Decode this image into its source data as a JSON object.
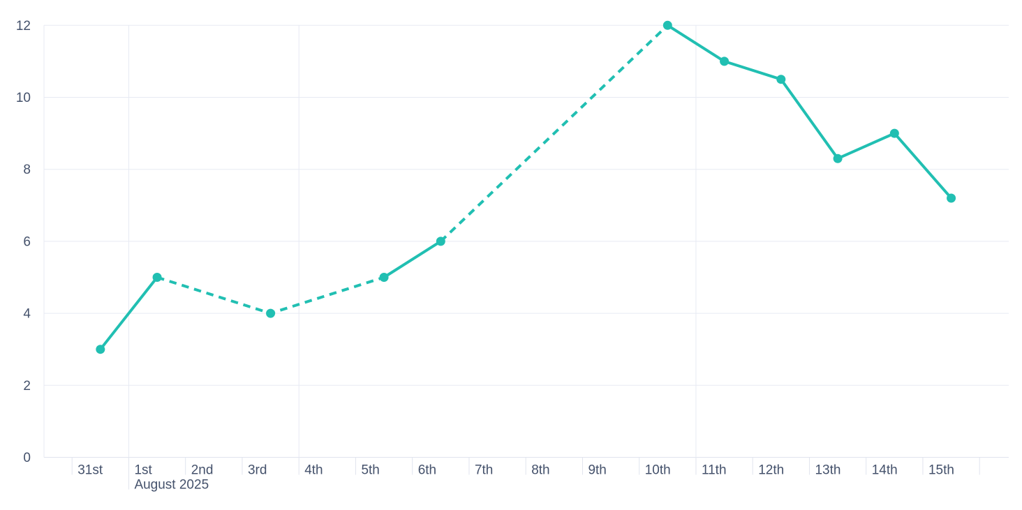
{
  "chart_data": {
    "type": "line",
    "title": "",
    "legend": "none",
    "x_axis": {
      "tick_labels": [
        "31st",
        "1st",
        "2nd",
        "3rd",
        "4th",
        "5th",
        "6th",
        "7th",
        "8th",
        "9th",
        "10th",
        "11th",
        "12th",
        "13th",
        "14th",
        "15th",
        ""
      ],
      "month_label": "August 2025",
      "month_tick_index": 1
    },
    "y_axis": {
      "tick_values": [
        0,
        2,
        4,
        6,
        8,
        10,
        12
      ],
      "range": [
        0,
        12
      ]
    },
    "grid": {
      "horizontal": true,
      "left_border": true,
      "vertical_gridline_tick_indices": [
        1,
        4,
        11
      ]
    },
    "series": [
      {
        "name": "value",
        "color": "#21bfb2",
        "marker": "circle",
        "points": [
          {
            "label": "31st",
            "tick_index": 0,
            "value": 3
          },
          {
            "label": "1st",
            "tick_index": 1,
            "value": 5
          },
          {
            "label": "3rd",
            "tick_index": 3,
            "value": 4
          },
          {
            "label": "5th",
            "tick_index": 5,
            "value": 5
          },
          {
            "label": "6th",
            "tick_index": 6,
            "value": 6
          },
          {
            "label": "10th",
            "tick_index": 10,
            "value": 12
          },
          {
            "label": "11th",
            "tick_index": 11,
            "value": 11
          },
          {
            "label": "12th",
            "tick_index": 12,
            "value": 10.5
          },
          {
            "label": "13th",
            "tick_index": 13,
            "value": 8.3
          },
          {
            "label": "14th",
            "tick_index": 14,
            "value": 9
          },
          {
            "label": "15th",
            "tick_index": 15,
            "value": 7.2
          }
        ],
        "segments": [
          {
            "from": 0,
            "to": 1,
            "style": "solid"
          },
          {
            "from": 1,
            "to": 3,
            "style": "dashed"
          },
          {
            "from": 3,
            "to": 4,
            "style": "solid"
          },
          {
            "from": 4,
            "to": 5,
            "style": "dashed"
          },
          {
            "from": 5,
            "to": 10,
            "style": "solid"
          }
        ]
      }
    ],
    "colors": {
      "series": "#21bfb2",
      "grid_line": "#e7eaf3",
      "axis_line": "#e0e4ee",
      "label_text": "#44516b",
      "background": "#ffffff"
    }
  }
}
